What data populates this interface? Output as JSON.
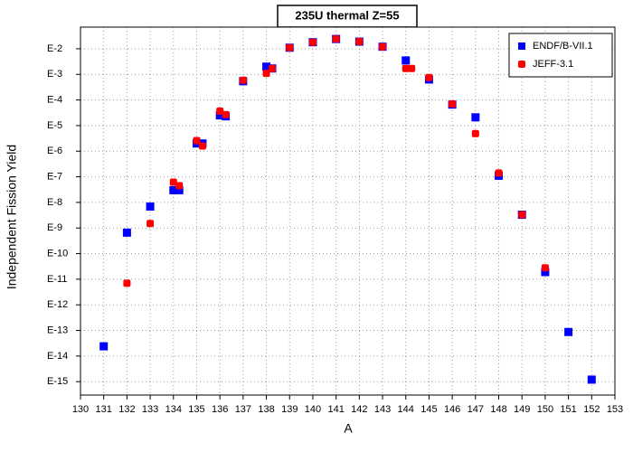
{
  "chart_data": {
    "type": "scatter",
    "title": "235U thermal Z=55",
    "x_label": "A",
    "y_label": "Independent Fission Yield",
    "log_y": true,
    "grid": true,
    "legend": "top-right",
    "xlim": [
      130,
      153
    ],
    "xticks": [
      130,
      131,
      132,
      133,
      134,
      135,
      136,
      137,
      138,
      139,
      140,
      141,
      142,
      143,
      144,
      145,
      146,
      147,
      148,
      149,
      150,
      151,
      152,
      153
    ],
    "ylim": [
      3e-16,
      0.07
    ],
    "yticks": [
      {
        "value": 0.01,
        "label": "E-2"
      },
      {
        "value": 0.001,
        "label": "E-3"
      },
      {
        "value": 0.0001,
        "label": "E-4"
      },
      {
        "value": 1e-05,
        "label": "E-5"
      },
      {
        "value": 1e-06,
        "label": "E-6"
      },
      {
        "value": 1e-07,
        "label": "E-7"
      },
      {
        "value": 1e-08,
        "label": "E-8"
      },
      {
        "value": 1e-09,
        "label": "E-9"
      },
      {
        "value": 1e-10,
        "label": "E-10"
      },
      {
        "value": 1e-11,
        "label": "E-11"
      },
      {
        "value": 1e-12,
        "label": "E-12"
      },
      {
        "value": 1e-13,
        "label": "E-13"
      },
      {
        "value": 1e-14,
        "label": "E-14"
      },
      {
        "value": 1e-15,
        "label": "E-15"
      }
    ],
    "series": [
      {
        "name": "ENDF/B-VII.1",
        "color": "#0000ff",
        "x": [
          131,
          132,
          133,
          134,
          134.25,
          135,
          135.25,
          136,
          136.25,
          137,
          138,
          138.25,
          139,
          140,
          141,
          142,
          143,
          144,
          145,
          146,
          147,
          148,
          149,
          150,
          151,
          152
        ],
        "values": [
          2.4e-14,
          6.6e-10,
          6.9e-09,
          3e-08,
          3e-08,
          2e-06,
          2e-06,
          2.5e-05,
          2.3e-05,
          0.00054,
          0.002,
          0.0017,
          0.011,
          0.018,
          0.024,
          0.019,
          0.012,
          0.0035,
          0.00063,
          6.6e-05,
          2.1e-05,
          1.1e-07,
          3.3e-09,
          1.9e-11,
          8.7e-14,
          1.2e-15
        ]
      },
      {
        "name": "JEFF-3.1",
        "color": "#ff0000",
        "x": [
          132,
          133,
          134,
          134.25,
          135,
          135.25,
          136,
          136.25,
          137,
          138,
          138.25,
          139,
          140,
          141,
          142,
          143,
          144,
          144.25,
          145,
          146,
          147,
          148,
          149,
          150
        ],
        "values": [
          7e-12,
          1.5e-09,
          6.2e-08,
          4.5e-08,
          2.6e-06,
          1.6e-06,
          3.7e-05,
          2.7e-05,
          0.00059,
          0.0011,
          0.0017,
          0.011,
          0.018,
          0.024,
          0.019,
          0.012,
          0.0017,
          0.0017,
          0.00075,
          7e-05,
          4.9e-06,
          1.4e-07,
          3.3e-09,
          2.8e-11
        ]
      }
    ]
  }
}
